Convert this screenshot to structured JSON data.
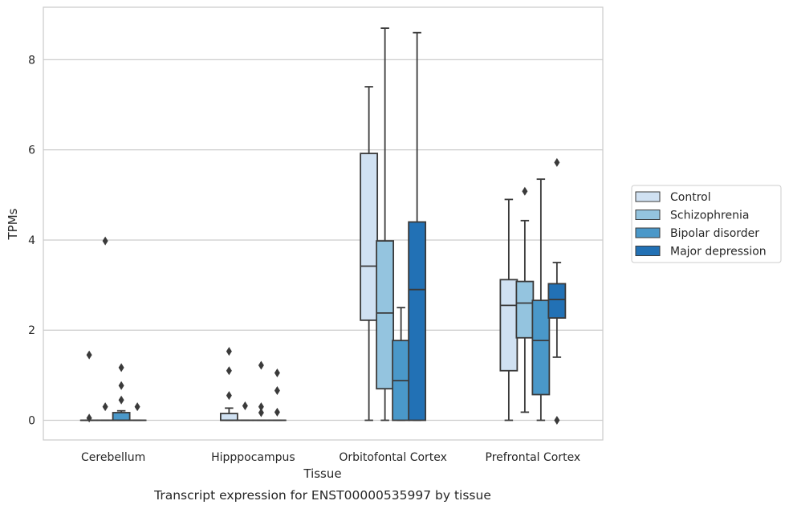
{
  "chart_data": {
    "type": "box",
    "title": "Transcript expression for ENST00000535997 by tissue",
    "xlabel": "Tissue",
    "ylabel": "TPMs",
    "ylim": [
      -0.42,
      9.2
    ],
    "yticks": [
      "0",
      "2",
      "4",
      "6",
      "8"
    ],
    "grid": true,
    "legend_position": "right",
    "categories": [
      "Cerebellum",
      "Hipppocampus",
      "Orbitofontal Cortex",
      "Prefrontal Cortex"
    ],
    "series": [
      {
        "name": "Control",
        "color": "#d0e1f2",
        "boxes": [
          {
            "q1": 0,
            "median": 0,
            "q3": 0,
            "whisker_low": 0,
            "whisker_high": 0,
            "outliers": [
              0.05,
              1.45
            ]
          },
          {
            "q1": 0,
            "median": 0,
            "q3": 0.15,
            "whisker_low": 0,
            "whisker_high": 0.27,
            "outliers": [
              0.55,
              1.1,
              1.53
            ]
          },
          {
            "q1": 2.22,
            "median": 3.42,
            "q3": 5.92,
            "whisker_low": 0,
            "whisker_high": 7.4,
            "outliers": []
          },
          {
            "q1": 1.1,
            "median": 2.55,
            "q3": 3.12,
            "whisker_low": 0,
            "whisker_high": 4.9,
            "outliers": []
          }
        ]
      },
      {
        "name": "Schizophrenia",
        "color": "#94c4df",
        "boxes": [
          {
            "q1": 0,
            "median": 0,
            "q3": 0,
            "whisker_low": 0,
            "whisker_high": 0,
            "outliers": [
              0.3,
              3.98
            ]
          },
          {
            "q1": 0,
            "median": 0,
            "q3": 0,
            "whisker_low": 0,
            "whisker_high": 0,
            "outliers": [
              0.32
            ]
          },
          {
            "q1": 0.7,
            "median": 2.38,
            "q3": 3.98,
            "whisker_low": 0,
            "whisker_high": 8.7,
            "outliers": []
          },
          {
            "q1": 1.83,
            "median": 2.6,
            "q3": 3.08,
            "whisker_low": 0.18,
            "whisker_high": 4.43,
            "outliers": [
              5.08
            ]
          }
        ]
      },
      {
        "name": "Bipolar disorder",
        "color": "#4a98c9",
        "boxes": [
          {
            "q1": 0,
            "median": 0,
            "q3": 0.17,
            "whisker_low": 0,
            "whisker_high": 0.21,
            "outliers": [
              0.45,
              0.77,
              1.17
            ]
          },
          {
            "q1": 0,
            "median": 0,
            "q3": 0,
            "whisker_low": 0,
            "whisker_high": 0,
            "outliers": [
              0.17,
              0.3,
              1.22
            ]
          },
          {
            "q1": 0,
            "median": 0.88,
            "q3": 1.77,
            "whisker_low": 0,
            "whisker_high": 2.5,
            "outliers": []
          },
          {
            "q1": 0.57,
            "median": 1.77,
            "q3": 2.66,
            "whisker_low": 0,
            "whisker_high": 5.35,
            "outliers": []
          }
        ]
      },
      {
        "name": "Major depression",
        "color": "#2271b5",
        "boxes": [
          {
            "q1": 0,
            "median": 0,
            "q3": 0,
            "whisker_low": 0,
            "whisker_high": 0,
            "outliers": [
              0.3
            ]
          },
          {
            "q1": 0,
            "median": 0,
            "q3": 0,
            "whisker_low": 0,
            "whisker_high": 0,
            "outliers": [
              0.18,
              0.66,
              1.05
            ]
          },
          {
            "q1": 0,
            "median": 2.9,
            "q3": 4.4,
            "whisker_low": 0,
            "whisker_high": 8.6,
            "outliers": []
          },
          {
            "q1": 2.27,
            "median": 2.68,
            "q3": 3.03,
            "whisker_low": 1.4,
            "whisker_high": 3.5,
            "outliers": [
              0,
              5.72
            ]
          }
        ]
      }
    ]
  }
}
